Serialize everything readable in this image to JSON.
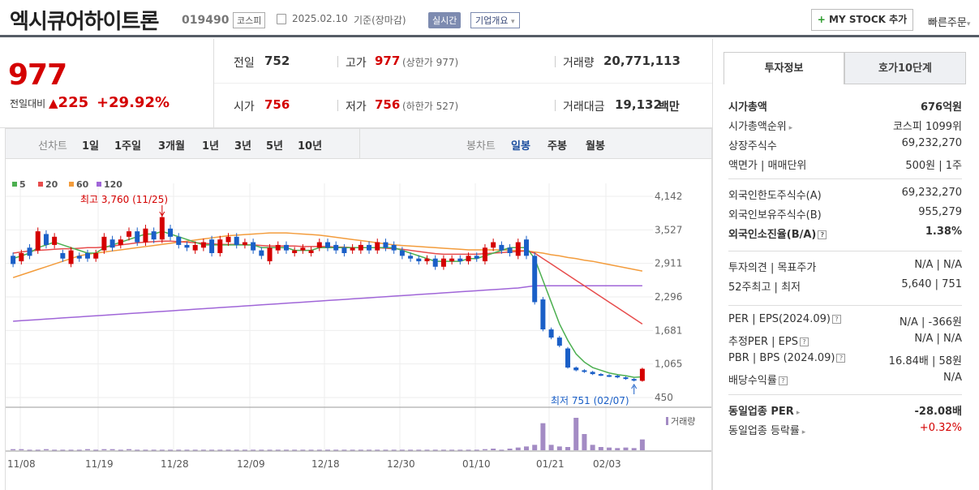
{
  "header": {
    "company_name": "엑시큐어하이트론",
    "code": "019490",
    "market": "코스피",
    "date": "2025.02.10",
    "basis": "기준(장마감)",
    "realtime": "실시간",
    "company_overview": "기업개요",
    "my_stock": "MY STOCK 추가",
    "quick_order": "빠른주문"
  },
  "price": {
    "current": "977",
    "change_label": "전일대비",
    "change": "225",
    "rate": "+29.92%"
  },
  "quote": {
    "prev_label": "전일",
    "prev": "752",
    "high_label": "고가",
    "high": "977",
    "upper_limit": "(상한가 977)",
    "volume_label": "거래량",
    "volume": "20,771,113",
    "open_label": "시가",
    "open": "756",
    "low_label": "저가",
    "low": "756",
    "lower_limit": "(하한가 527)",
    "amount_label": "거래대금",
    "amount": "19,132",
    "amount_unit": "백만"
  },
  "toolbar": {
    "line_label": "선차트",
    "periods": [
      "1일",
      "1주일",
      "3개월",
      "1년",
      "3년",
      "5년",
      "10년"
    ],
    "candle_label": "봉차트",
    "candle_types": [
      "일봉",
      "주봉",
      "월봉"
    ]
  },
  "colors": {
    "up": "#d40000",
    "down": "#1a5fc7",
    "ma5": "#4caf50",
    "ma20": "#e74c4c",
    "ma60": "#f39c3c",
    "ma120": "#a066d8",
    "volume": "#a38bc4"
  },
  "chart_data": {
    "type": "candlestick",
    "legend": [
      "5",
      "20",
      "60",
      "120"
    ],
    "y_ticks": [
      "4,142",
      "3,527",
      "2,911",
      "2,296",
      "1,681",
      "1,065",
      "450"
    ],
    "ylim": [
      450,
      4142
    ],
    "x_ticks": [
      "11/08",
      "11/19",
      "11/28",
      "12/09",
      "12/18",
      "12/30",
      "01/10",
      "01/21",
      "02/03"
    ],
    "high_annotation": "최고 3,760 (11/25)",
    "low_annotation": "최저 751 (02/07)",
    "volume_label": "거래량",
    "candles": [
      [
        3050,
        2900
      ],
      [
        2950,
        3100
      ],
      [
        3200,
        3050
      ],
      [
        3150,
        3500
      ],
      [
        3450,
        3250
      ],
      [
        3250,
        3400
      ],
      [
        3100,
        3000
      ],
      [
        2900,
        3150
      ],
      [
        3050,
        3000
      ],
      [
        3100,
        3000
      ],
      [
        3000,
        3100
      ],
      [
        3150,
        3400
      ],
      [
        3350,
        3200
      ],
      [
        3250,
        3350
      ],
      [
        3400,
        3500
      ],
      [
        3500,
        3300
      ],
      [
        3300,
        3550
      ],
      [
        3500,
        3350
      ],
      [
        3350,
        3760
      ],
      [
        3550,
        3400
      ],
      [
        3400,
        3250
      ],
      [
        3250,
        3200
      ],
      [
        3150,
        3250
      ],
      [
        3200,
        3300
      ],
      [
        3350,
        3100
      ],
      [
        3100,
        3350
      ],
      [
        3300,
        3400
      ],
      [
        3400,
        3250
      ],
      [
        3250,
        3300
      ],
      [
        3300,
        3150
      ],
      [
        3150,
        3050
      ],
      [
        2950,
        3200
      ],
      [
        3150,
        3250
      ],
      [
        3250,
        3150
      ],
      [
        3100,
        3150
      ],
      [
        3150,
        3200
      ],
      [
        3100,
        3150
      ],
      [
        3200,
        3300
      ],
      [
        3300,
        3200
      ],
      [
        3250,
        3150
      ],
      [
        3200,
        3100
      ],
      [
        3150,
        3200
      ],
      [
        3150,
        3250
      ],
      [
        3250,
        3150
      ],
      [
        3150,
        3300
      ],
      [
        3300,
        3200
      ],
      [
        3250,
        3150
      ],
      [
        3150,
        3050
      ],
      [
        3050,
        3000
      ],
      [
        3000,
        2950
      ],
      [
        2950,
        3000
      ],
      [
        3000,
        2850
      ],
      [
        2850,
        3000
      ],
      [
        2950,
        3000
      ],
      [
        3000,
        2950
      ],
      [
        2950,
        3050
      ],
      [
        3050,
        3000
      ],
      [
        2950,
        3200
      ],
      [
        3200,
        3300
      ],
      [
        3250,
        3150
      ],
      [
        3200,
        3100
      ],
      [
        3050,
        3300
      ],
      [
        3350,
        3050
      ],
      [
        3050,
        2200
      ],
      [
        2250,
        1700
      ],
      [
        1700,
        1550
      ],
      [
        1550,
        1400
      ],
      [
        1350,
        1000
      ],
      [
        1000,
        950
      ],
      [
        950,
        920
      ],
      [
        920,
        880
      ],
      [
        880,
        860
      ],
      [
        860,
        840
      ],
      [
        850,
        820
      ],
      [
        820,
        790
      ],
      [
        790,
        760
      ],
      [
        756,
        977
      ]
    ],
    "ma5": [
      3000,
      3050,
      3100,
      3200,
      3250,
      3300,
      3250,
      3200,
      3150,
      3100,
      3100,
      3200,
      3250,
      3300,
      3350,
      3400,
      3450,
      3450,
      3500,
      3450,
      3400,
      3350,
      3300,
      3250,
      3250,
      3250,
      3250,
      3250,
      3250,
      3250,
      3200,
      3200,
      3200,
      3200,
      3150,
      3150,
      3150,
      3200,
      3200,
      3200,
      3200,
      3200,
      3200,
      3200,
      3200,
      3200,
      3200,
      3150,
      3100,
      3050,
      3000,
      2950,
      2950,
      2950,
      2950,
      3000,
      3000,
      3050,
      3100,
      3150,
      3200,
      3200,
      3200,
      3000,
      2600,
      2200,
      1800,
      1500,
      1250,
      1100,
      1000,
      950,
      900,
      870,
      850,
      820,
      830
    ],
    "ma20": [
      3100,
      3120,
      3140,
      3150,
      3160,
      3170,
      3180,
      3180,
      3190,
      3200,
      3200,
      3210,
      3230,
      3250,
      3270,
      3290,
      3300,
      3310,
      3320,
      3320,
      3310,
      3300,
      3290,
      3280,
      3270,
      3260,
      3260,
      3260,
      3250,
      3250,
      3240,
      3230,
      3230,
      3230,
      3230,
      3220,
      3220,
      3220,
      3220,
      3210,
      3210,
      3200,
      3200,
      3200,
      3200,
      3190,
      3180,
      3170,
      3150,
      3130,
      3110,
      3090,
      3080,
      3080,
      3080,
      3080,
      3080,
      3090,
      3100,
      3110,
      3120,
      3130,
      3140,
      3100,
      3000,
      2900,
      2800,
      2700,
      2600,
      2500,
      2400,
      2300,
      2200,
      2100,
      2000,
      1900,
      1800
    ],
    "ma60": [
      2650,
      2700,
      2750,
      2800,
      2850,
      2900,
      2950,
      3000,
      3050,
      3080,
      3100,
      3120,
      3140,
      3160,
      3180,
      3200,
      3220,
      3240,
      3260,
      3280,
      3300,
      3320,
      3340,
      3360,
      3380,
      3400,
      3420,
      3430,
      3440,
      3450,
      3460,
      3470,
      3470,
      3470,
      3460,
      3450,
      3440,
      3430,
      3410,
      3390,
      3370,
      3350,
      3330,
      3310,
      3290,
      3270,
      3250,
      3240,
      3230,
      3220,
      3210,
      3200,
      3190,
      3180,
      3170,
      3160,
      3160,
      3160,
      3160,
      3160,
      3150,
      3150,
      3140,
      3120,
      3100,
      3070,
      3050,
      3020,
      3000,
      2970,
      2950,
      2920,
      2890,
      2860,
      2830,
      2800,
      2770
    ],
    "ma120": [
      1850,
      1860,
      1870,
      1880,
      1890,
      1900,
      1910,
      1920,
      1930,
      1940,
      1950,
      1960,
      1970,
      1980,
      1990,
      2000,
      2010,
      2020,
      2030,
      2040,
      2050,
      2060,
      2070,
      2080,
      2090,
      2100,
      2110,
      2120,
      2130,
      2140,
      2150,
      2160,
      2170,
      2180,
      2190,
      2200,
      2210,
      2220,
      2230,
      2240,
      2250,
      2260,
      2270,
      2280,
      2290,
      2300,
      2310,
      2320,
      2330,
      2340,
      2350,
      2360,
      2370,
      2380,
      2390,
      2400,
      2410,
      2420,
      2430,
      2440,
      2450,
      2460,
      2480,
      2500,
      2500,
      2500,
      2500,
      2500,
      2500,
      2500,
      2500,
      2500,
      2500,
      2500,
      2500,
      2500,
      2500
    ],
    "volume": [
      2,
      2,
      1,
      1,
      2,
      1,
      1,
      1,
      1,
      2,
      1,
      2,
      2,
      1,
      2,
      1,
      1,
      1,
      1,
      1,
      1,
      1,
      1,
      1,
      1,
      1,
      1,
      1,
      1,
      1,
      1,
      1,
      1,
      1,
      1,
      1,
      1,
      1,
      1,
      1,
      1,
      1,
      1,
      1,
      1,
      1,
      1,
      1,
      1,
      1,
      1,
      1,
      1,
      1,
      1,
      1,
      1,
      2,
      3,
      1,
      3,
      5,
      7,
      10,
      50,
      10,
      7,
      6,
      60,
      30,
      10,
      6,
      5,
      4,
      5,
      4,
      20
    ]
  },
  "side": {
    "tab_invest": "투자정보",
    "tab_hoga": "호가10단계",
    "rows1": [
      {
        "k": "시가총액",
        "v": "676억원"
      },
      {
        "k": "시가총액순위",
        "v": "코스피 1099위"
      },
      {
        "k": "상장주식수",
        "v": "69,232,270"
      },
      {
        "k": "액면가 | 매매단위",
        "v": "500원 | 1주"
      }
    ],
    "rows2": [
      {
        "k": "외국인한도주식수(A)",
        "v": "69,232,270"
      },
      {
        "k": "외국인보유주식수(B)",
        "v": "955,279"
      },
      {
        "k": "외국인소진율(B/A)",
        "v": "1.38%"
      }
    ],
    "rows3": [
      {
        "k": "투자의견 | 목표주가",
        "v": "N/A | N/A"
      },
      {
        "k": "52주최고 | 최저",
        "v": "5,640 | 751"
      }
    ],
    "rows4": [
      {
        "k": "PER | EPS(2024.09)",
        "v": "N/A | -366원"
      },
      {
        "k": "추정PER | EPS",
        "v": "N/A | N/A"
      },
      {
        "k": "PBR | BPS (2024.09)",
        "v": "16.84배 | 58원"
      },
      {
        "k": "배당수익률",
        "v": "N/A"
      }
    ],
    "rows5": [
      {
        "k": "동일업종 PER",
        "v": "-28.08배"
      },
      {
        "k": "동일업종 등락률",
        "v": "+0.32%"
      }
    ]
  }
}
